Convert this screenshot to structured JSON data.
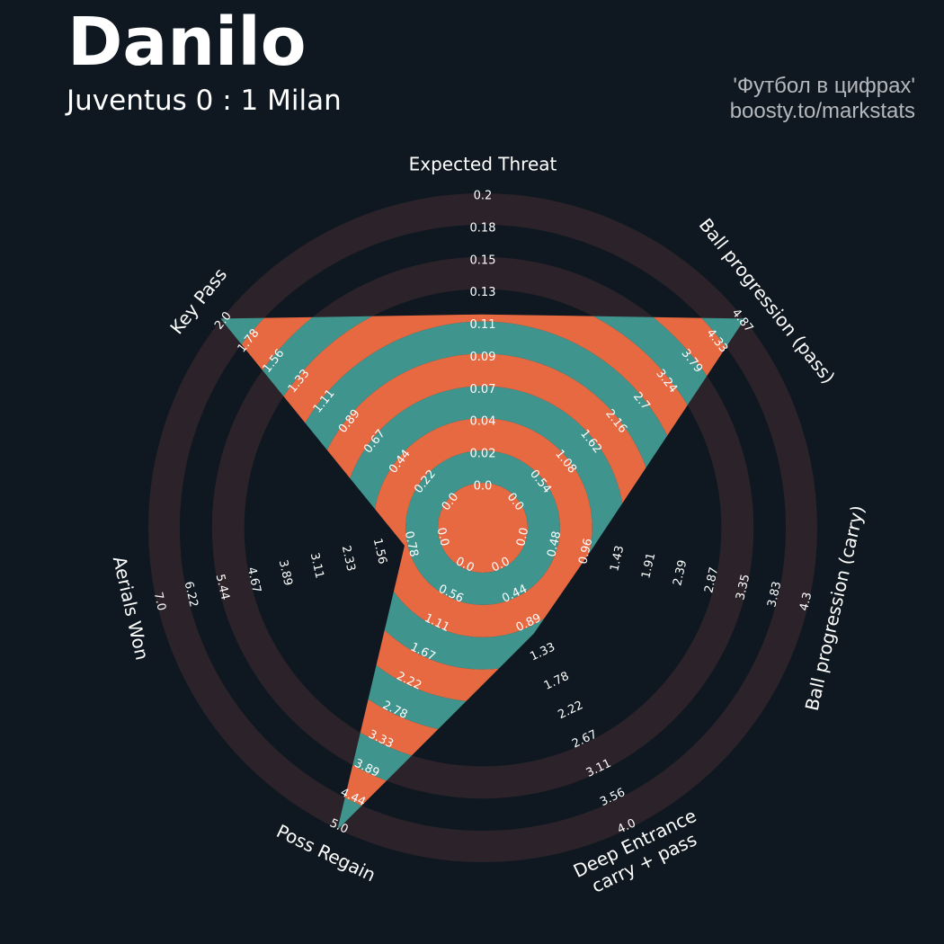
{
  "header": {
    "player": "Danilo",
    "match": "Juventus 0 : 1 Milan",
    "source_line1": "'Футбол в цифрах'",
    "source_line2": "boosty.to/markstats"
  },
  "colors": {
    "background": "#0f1820",
    "outer_band": "#2b2329",
    "fill_a": "#3f958d",
    "fill_b": "#e76942",
    "text": "#ffffff",
    "credit": "#b4b8bc"
  },
  "chart_data": {
    "type": "radar",
    "title": "Danilo",
    "subtitle": "Juventus 0 : 1 Milan",
    "parameters": [
      {
        "label": "Expected Threat",
        "min": 0.0,
        "max": 0.2,
        "value": 0.116,
        "ticks": [
          "0.0",
          "0.02",
          "0.04",
          "0.07",
          "0.09",
          "0.11",
          "0.13",
          "0.15",
          "0.18",
          "0.2"
        ]
      },
      {
        "label": "Ball progression (pass)",
        "min": 0.0,
        "max": 4.87,
        "value": 4.87,
        "ticks": [
          "0.0",
          "0.54",
          "1.08",
          "1.62",
          "2.16",
          "2.7",
          "3.24",
          "3.79",
          "4.33",
          "4.87"
        ]
      },
      {
        "label": "Ball progression (carry)",
        "min": 0.0,
        "max": 4.3,
        "value": 0.96,
        "ticks": [
          "0.0",
          "0.48",
          "0.96",
          "1.43",
          "1.91",
          "2.39",
          "2.87",
          "3.35",
          "3.83",
          "4.3"
        ]
      },
      {
        "label": "Deep Entrance\ncarry + pass",
        "min": 0.0,
        "max": 4.0,
        "value": 1.0,
        "ticks": [
          "0.0",
          "0.44",
          "0.89",
          "1.33",
          "1.78",
          "2.22",
          "2.67",
          "3.11",
          "3.56",
          "4.0"
        ]
      },
      {
        "label": "Poss Regain",
        "min": 0.0,
        "max": 5.0,
        "value": 5.0,
        "ticks": [
          "0.0",
          "0.56",
          "1.11",
          "1.67",
          "2.22",
          "2.78",
          "3.33",
          "3.89",
          "4.44",
          "5.0"
        ]
      },
      {
        "label": "Aerials Won",
        "min": 0.0,
        "max": 7.0,
        "value": 0.85,
        "ticks": [
          "0.0",
          "0.78",
          "1.56",
          "2.33",
          "3.11",
          "3.89",
          "4.67",
          "5.44",
          "6.22",
          "7.0"
        ]
      },
      {
        "label": "Key Pass",
        "min": 0.0,
        "max": 2.0,
        "value": 2.0,
        "ticks": [
          "0.0",
          "0.22",
          "0.44",
          "0.67",
          "0.89",
          "1.11",
          "1.33",
          "1.56",
          "1.78",
          "2.0"
        ]
      }
    ]
  }
}
